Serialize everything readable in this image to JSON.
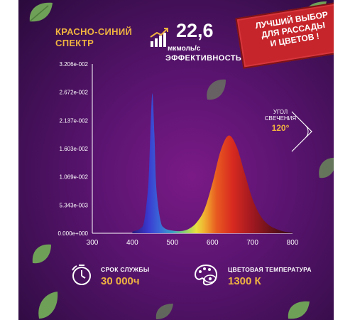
{
  "title_lines": [
    "КРАСНО-СИНИЙ",
    "СПЕКТР"
  ],
  "efficiency": {
    "value": "22,6",
    "unit": "мкмоль/с",
    "label": "ЭФФЕКТИВНОСТЬ",
    "icon": "growth-bars-icon"
  },
  "badge": {
    "lines": [
      "ЛУЧШИЙ ВЫБОР",
      "ДЛЯ РАССАДЫ",
      "И ЦВЕТОВ !"
    ],
    "color": "#c5252b"
  },
  "angle": {
    "label_lines": [
      "УГОЛ",
      "СВЕЧЕНИЯ"
    ],
    "value": "120°"
  },
  "features": [
    {
      "icon": "stopwatch-icon",
      "label": "СРОК СЛУЖБЫ",
      "value": "30 000ч"
    },
    {
      "icon": "palette-eye-icon",
      "label": "ЦВЕТОВАЯ ТЕМПЕРАТУРА",
      "value": "1300 К"
    }
  ],
  "colors": {
    "accent": "#f0b340",
    "background": "#5a1470",
    "leaf": "#6fa058"
  },
  "chart_data": {
    "type": "area",
    "xlim": [
      300,
      800
    ],
    "ylim": [
      0,
      0.03206
    ],
    "x_ticks": [
      "300",
      "400",
      "500",
      "600",
      "700",
      "800"
    ],
    "y_ticks": [
      "0.000e+000",
      "5.343e-003",
      "1.069e-002",
      "1.603e-002",
      "2.137e-002",
      "2.672e-002",
      "3.206e-002"
    ],
    "grid": false,
    "series": [
      {
        "x": [
          400,
          420,
          430,
          440,
          445,
          450,
          455,
          460,
          470,
          480,
          500,
          520,
          540,
          560,
          580,
          600,
          620,
          640,
          660,
          680,
          700,
          720,
          740,
          760,
          780,
          800
        ],
        "y": [
          0.0003,
          0.0009,
          0.0025,
          0.0095,
          0.019,
          0.0265,
          0.019,
          0.0085,
          0.0025,
          0.001,
          0.0005,
          0.0004,
          0.0008,
          0.002,
          0.0045,
          0.0095,
          0.0155,
          0.0185,
          0.0165,
          0.0115,
          0.0065,
          0.0033,
          0.0016,
          0.0008,
          0.0003,
          0.0001
        ]
      }
    ]
  }
}
